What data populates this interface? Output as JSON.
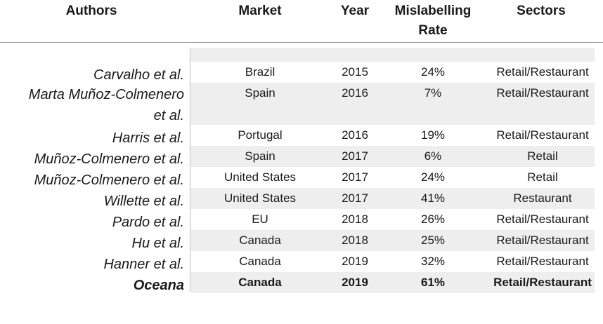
{
  "headers": {
    "authors": "Authors",
    "market": "Market",
    "year": "Year",
    "rate_line1": "Mislabelling",
    "rate_line2": "Rate",
    "sectors": "Sectors"
  },
  "rows": [
    {
      "author": "Carvalho et al.",
      "market": "Brazil",
      "year": "2015",
      "rate": "24%",
      "sector": "Retail/Restaurant"
    },
    {
      "author_line1": "Marta Muñoz-Colmenero",
      "author_line2": "et al.",
      "market": "Spain",
      "year": "2016",
      "rate": "7%",
      "sector": "Retail/Restaurant"
    },
    {
      "author": "Harris et al.",
      "market": "Portugal",
      "year": "2016",
      "rate": "19%",
      "sector": "Retail/Restaurant"
    },
    {
      "author": "Muñoz-Colmenero et al.",
      "market": "Spain",
      "year": "2017",
      "rate": "6%",
      "sector": "Retail"
    },
    {
      "author": "Muñoz-Colmenero et al.",
      "market": "United States",
      "year": "2017",
      "rate": "24%",
      "sector": "Retail"
    },
    {
      "author": "Willette et al.",
      "market": "United States",
      "year": "2017",
      "rate": "41%",
      "sector": "Restaurant"
    },
    {
      "author": "Pardo et al.",
      "market": "EU",
      "year": "2018",
      "rate": "26%",
      "sector": "Retail/Restaurant"
    },
    {
      "author": "Hu et al.",
      "market": "Canada",
      "year": "2018",
      "rate": "25%",
      "sector": "Retail/Restaurant"
    },
    {
      "author": "Hanner et al.",
      "market": "Canada",
      "year": "2019",
      "rate": "32%",
      "sector": "Retail/Restaurant"
    },
    {
      "author": "Oceana",
      "market": "Canada",
      "year": "2019",
      "rate": "61%",
      "sector": "Retail/Restaurant"
    }
  ],
  "colors": {
    "grey_band": "#eeeeee",
    "rule": "#9a9a9a"
  }
}
